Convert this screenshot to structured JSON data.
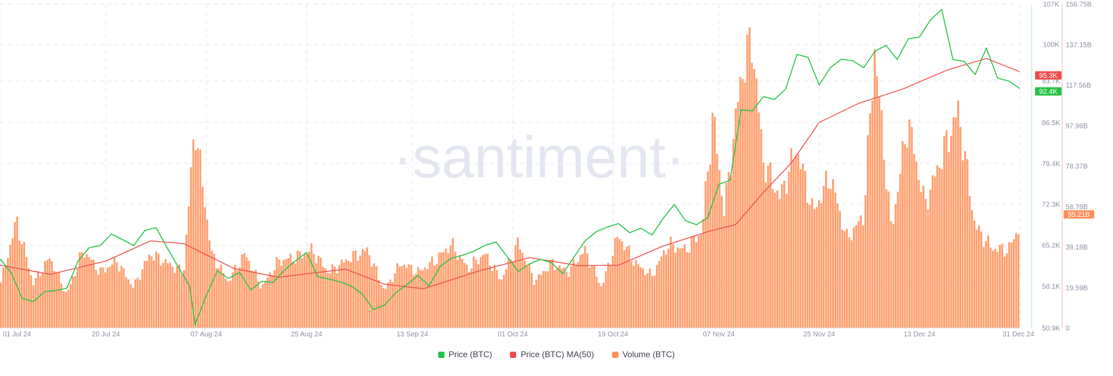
{
  "watermark": "·santiment·",
  "colors": {
    "price": "#26c244",
    "ma": "#ef4d4d",
    "volume": "#ff9f6f",
    "volume_edge": "#f08a55",
    "grid": "#e6e8ef"
  },
  "legend": [
    {
      "label": "Price (BTC)",
      "color": "#26c244"
    },
    {
      "label": "Price (BTC) MA(50)",
      "color": "#ef4d4d"
    },
    {
      "label": "Volume (BTC)",
      "color": "#ff8f5a"
    }
  ],
  "current_labels": {
    "ma": "95.3K",
    "price": "92.4K",
    "volume": "55.21B"
  },
  "chart_data": {
    "type": "line",
    "x_range": [
      "2024-07-01",
      "2024-12-31"
    ],
    "x_ticks": [
      {
        "label": "01 Jul 24",
        "date": "2024-07-01"
      },
      {
        "label": "20 Jul 24",
        "date": "2024-07-20"
      },
      {
        "label": "07 Aug 24",
        "date": "2024-08-07"
      },
      {
        "label": "25 Aug 24",
        "date": "2024-08-25"
      },
      {
        "label": "13 Sep 24",
        "date": "2024-09-13"
      },
      {
        "label": "01 Oct 24",
        "date": "2024-10-01"
      },
      {
        "label": "19 Oct 24",
        "date": "2024-10-19"
      },
      {
        "label": "07 Nov 24",
        "date": "2024-11-07"
      },
      {
        "label": "25 Nov 24",
        "date": "2024-11-25"
      },
      {
        "label": "13 Dec 24",
        "date": "2024-12-13"
      },
      {
        "label": "31 Dec 24",
        "date": "2024-12-31"
      }
    ],
    "price_axis": {
      "ylim": [
        50900,
        107000
      ],
      "ticks": [
        {
          "label": "107K",
          "value": 107000
        },
        {
          "label": "100K",
          "value": 100000
        },
        {
          "label": "93.7K",
          "value": 93700
        },
        {
          "label": "86.5K",
          "value": 86500
        },
        {
          "label": "79.4K",
          "value": 79400
        },
        {
          "label": "72.3K",
          "value": 72300
        },
        {
          "label": "65.2K",
          "value": 65200
        },
        {
          "label": "58.1K",
          "value": 58100
        },
        {
          "label": "50.9K",
          "value": 50900
        }
      ]
    },
    "volume_axis": {
      "ylim": [
        0,
        156750000000
      ],
      "ticks": [
        {
          "label": "156.75B",
          "value": 156750000000
        },
        {
          "label": "137.15B",
          "value": 137150000000
        },
        {
          "label": "117.56B",
          "value": 117560000000
        },
        {
          "label": "97.96B",
          "value": 97960000000
        },
        {
          "label": "78.37B",
          "value": 78370000000
        },
        {
          "label": "58.78B",
          "value": 58780000000
        },
        {
          "label": "39.18B",
          "value": 39180000000
        },
        {
          "label": "19.59B",
          "value": 19590000000
        },
        {
          "label": "0",
          "value": 0
        }
      ]
    },
    "series": [
      {
        "name": "Price (BTC)",
        "axis": "price",
        "points": [
          [
            "2024-07-01",
            62900
          ],
          [
            "2024-07-03",
            60500
          ],
          [
            "2024-07-05",
            56000
          ],
          [
            "2024-07-07",
            55500
          ],
          [
            "2024-07-09",
            57200
          ],
          [
            "2024-07-11",
            57400
          ],
          [
            "2024-07-13",
            57800
          ],
          [
            "2024-07-15",
            62500
          ],
          [
            "2024-07-17",
            64800
          ],
          [
            "2024-07-19",
            65200
          ],
          [
            "2024-07-21",
            67200
          ],
          [
            "2024-07-23",
            66200
          ],
          [
            "2024-07-25",
            65200
          ],
          [
            "2024-07-27",
            67800
          ],
          [
            "2024-07-29",
            68300
          ],
          [
            "2024-07-31",
            64800
          ],
          [
            "2024-08-02",
            61500
          ],
          [
            "2024-08-04",
            58200
          ],
          [
            "2024-08-05",
            51500
          ],
          [
            "2024-08-07",
            56500
          ],
          [
            "2024-08-09",
            60800
          ],
          [
            "2024-08-11",
            59500
          ],
          [
            "2024-08-13",
            60500
          ],
          [
            "2024-08-15",
            57500
          ],
          [
            "2024-08-17",
            59000
          ],
          [
            "2024-08-19",
            58800
          ],
          [
            "2024-08-21",
            60900
          ],
          [
            "2024-08-23",
            62500
          ],
          [
            "2024-08-25",
            64000
          ],
          [
            "2024-08-27",
            59800
          ],
          [
            "2024-08-29",
            59400
          ],
          [
            "2024-08-31",
            58900
          ],
          [
            "2024-09-02",
            58200
          ],
          [
            "2024-09-04",
            56800
          ],
          [
            "2024-09-06",
            54100
          ],
          [
            "2024-09-08",
            54900
          ],
          [
            "2024-09-10",
            57000
          ],
          [
            "2024-09-12",
            58400
          ],
          [
            "2024-09-14",
            60000
          ],
          [
            "2024-09-16",
            58200
          ],
          [
            "2024-09-18",
            61600
          ],
          [
            "2024-09-20",
            63000
          ],
          [
            "2024-09-22",
            63500
          ],
          [
            "2024-09-24",
            64200
          ],
          [
            "2024-09-26",
            65200
          ],
          [
            "2024-09-28",
            65800
          ],
          [
            "2024-09-30",
            63300
          ],
          [
            "2024-10-02",
            60700
          ],
          [
            "2024-10-04",
            62000
          ],
          [
            "2024-10-06",
            62800
          ],
          [
            "2024-10-08",
            62200
          ],
          [
            "2024-10-10",
            60300
          ],
          [
            "2024-10-12",
            63200
          ],
          [
            "2024-10-14",
            66000
          ],
          [
            "2024-10-16",
            67600
          ],
          [
            "2024-10-18",
            68400
          ],
          [
            "2024-10-20",
            69000
          ],
          [
            "2024-10-22",
            67400
          ],
          [
            "2024-10-24",
            68200
          ],
          [
            "2024-10-26",
            67000
          ],
          [
            "2024-10-28",
            69900
          ],
          [
            "2024-10-30",
            72300
          ],
          [
            "2024-11-01",
            69500
          ],
          [
            "2024-11-03",
            68800
          ],
          [
            "2024-11-05",
            70000
          ],
          [
            "2024-11-07",
            75800
          ],
          [
            "2024-11-09",
            76500
          ],
          [
            "2024-11-11",
            88700
          ],
          [
            "2024-11-13",
            88500
          ],
          [
            "2024-11-15",
            91000
          ],
          [
            "2024-11-17",
            90500
          ],
          [
            "2024-11-19",
            92300
          ],
          [
            "2024-11-21",
            98300
          ],
          [
            "2024-11-23",
            97800
          ],
          [
            "2024-11-25",
            93000
          ],
          [
            "2024-11-27",
            96000
          ],
          [
            "2024-11-29",
            97500
          ],
          [
            "2024-12-01",
            97200
          ],
          [
            "2024-12-03",
            96000
          ],
          [
            "2024-12-05",
            98800
          ],
          [
            "2024-12-07",
            99900
          ],
          [
            "2024-12-09",
            97400
          ],
          [
            "2024-12-11",
            101000
          ],
          [
            "2024-12-13",
            101300
          ],
          [
            "2024-12-15",
            104300
          ],
          [
            "2024-12-17",
            106100
          ],
          [
            "2024-12-19",
            97400
          ],
          [
            "2024-12-21",
            97100
          ],
          [
            "2024-12-23",
            94800
          ],
          [
            "2024-12-25",
            99400
          ],
          [
            "2024-12-27",
            94200
          ],
          [
            "2024-12-29",
            93700
          ],
          [
            "2024-12-31",
            92400
          ]
        ]
      },
      {
        "name": "Price (BTC) MA(50)",
        "axis": "price",
        "points": [
          [
            "2024-07-01",
            61800
          ],
          [
            "2024-07-10",
            60200
          ],
          [
            "2024-07-20",
            62500
          ],
          [
            "2024-07-28",
            66000
          ],
          [
            "2024-08-03",
            65500
          ],
          [
            "2024-08-12",
            61200
          ],
          [
            "2024-08-20",
            59700
          ],
          [
            "2024-09-01",
            61100
          ],
          [
            "2024-09-08",
            58500
          ],
          [
            "2024-09-15",
            57700
          ],
          [
            "2024-09-25",
            60800
          ],
          [
            "2024-10-04",
            63100
          ],
          [
            "2024-10-13",
            61700
          ],
          [
            "2024-10-20",
            61800
          ],
          [
            "2024-10-28",
            65100
          ],
          [
            "2024-11-05",
            67600
          ],
          [
            "2024-11-10",
            68800
          ],
          [
            "2024-11-15",
            74400
          ],
          [
            "2024-11-20",
            79500
          ],
          [
            "2024-11-25",
            86500
          ],
          [
            "2024-12-02",
            89800
          ],
          [
            "2024-12-10",
            92300
          ],
          [
            "2024-12-18",
            95600
          ],
          [
            "2024-12-25",
            97600
          ],
          [
            "2024-12-31",
            95300
          ]
        ]
      },
      {
        "name": "Volume (BTC)",
        "axis": "volume",
        "points": [
          [
            "2024-07-01",
            22000000000
          ],
          [
            "2024-07-04",
            58000000000
          ],
          [
            "2024-07-07",
            24000000000
          ],
          [
            "2024-07-10",
            38000000000
          ],
          [
            "2024-07-13",
            18000000000
          ],
          [
            "2024-07-16",
            42000000000
          ],
          [
            "2024-07-19",
            30000000000
          ],
          [
            "2024-07-22",
            36000000000
          ],
          [
            "2024-07-25",
            22000000000
          ],
          [
            "2024-07-28",
            40000000000
          ],
          [
            "2024-07-31",
            35000000000
          ],
          [
            "2024-08-03",
            30000000000
          ],
          [
            "2024-08-05",
            110000000000
          ],
          [
            "2024-08-08",
            40000000000
          ],
          [
            "2024-08-11",
            25000000000
          ],
          [
            "2024-08-14",
            40000000000
          ],
          [
            "2024-08-17",
            22000000000
          ],
          [
            "2024-08-20",
            36000000000
          ],
          [
            "2024-08-23",
            38000000000
          ],
          [
            "2024-08-26",
            42000000000
          ],
          [
            "2024-08-29",
            30000000000
          ],
          [
            "2024-09-02",
            38000000000
          ],
          [
            "2024-09-05",
            42000000000
          ],
          [
            "2024-09-08",
            20000000000
          ],
          [
            "2024-09-11",
            35000000000
          ],
          [
            "2024-09-14",
            30000000000
          ],
          [
            "2024-09-17",
            36000000000
          ],
          [
            "2024-09-20",
            45000000000
          ],
          [
            "2024-09-23",
            32000000000
          ],
          [
            "2024-09-26",
            40000000000
          ],
          [
            "2024-09-29",
            26000000000
          ],
          [
            "2024-10-02",
            46000000000
          ],
          [
            "2024-10-05",
            25000000000
          ],
          [
            "2024-10-08",
            35000000000
          ],
          [
            "2024-10-11",
            30000000000
          ],
          [
            "2024-10-14",
            42000000000
          ],
          [
            "2024-10-17",
            22000000000
          ],
          [
            "2024-10-20",
            50000000000
          ],
          [
            "2024-10-23",
            35000000000
          ],
          [
            "2024-10-26",
            28000000000
          ],
          [
            "2024-10-29",
            45000000000
          ],
          [
            "2024-11-01",
            42000000000
          ],
          [
            "2024-11-04",
            52000000000
          ],
          [
            "2024-11-06",
            115000000000
          ],
          [
            "2024-11-08",
            62000000000
          ],
          [
            "2024-11-11",
            135000000000
          ],
          [
            "2024-11-13",
            156000000000
          ],
          [
            "2024-11-15",
            90000000000
          ],
          [
            "2024-11-18",
            70000000000
          ],
          [
            "2024-11-21",
            97000000000
          ],
          [
            "2024-11-24",
            62000000000
          ],
          [
            "2024-11-27",
            82000000000
          ],
          [
            "2024-11-30",
            48000000000
          ],
          [
            "2024-12-03",
            60000000000
          ],
          [
            "2024-12-05",
            150000000000
          ],
          [
            "2024-12-08",
            52000000000
          ],
          [
            "2024-12-11",
            112000000000
          ],
          [
            "2024-12-14",
            66000000000
          ],
          [
            "2024-12-17",
            92000000000
          ],
          [
            "2024-12-20",
            117000000000
          ],
          [
            "2024-12-23",
            55000000000
          ],
          [
            "2024-12-26",
            43000000000
          ],
          [
            "2024-12-29",
            42000000000
          ],
          [
            "2024-12-31",
            55210000000
          ]
        ]
      }
    ],
    "grid": true,
    "legend_position": "bottom-center"
  }
}
